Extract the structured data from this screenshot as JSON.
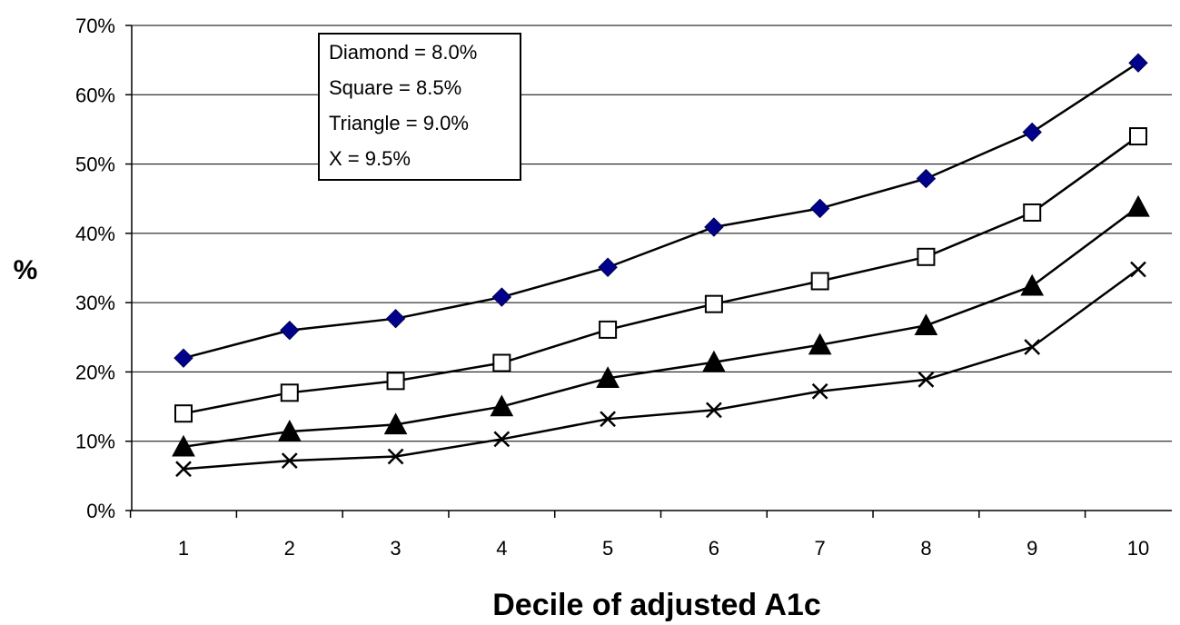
{
  "chart_data": {
    "type": "line",
    "xlabel": "Decile of adjusted A1c",
    "ylabel": "%",
    "categories": [
      "1",
      "2",
      "3",
      "4",
      "5",
      "6",
      "7",
      "8",
      "9",
      "10"
    ],
    "ylim": [
      0,
      70
    ],
    "yticks": [
      "0%",
      "10%",
      "20%",
      "30%",
      "40%",
      "50%",
      "60%",
      "70%"
    ],
    "ytick_values": [
      0,
      10,
      20,
      30,
      40,
      50,
      60,
      70
    ],
    "grid": "horizontal",
    "legend_placement": "top-left",
    "legend": [
      "Diamond = 8.0%",
      "Square = 8.5%",
      "Triangle = 9.0%",
      "X = 9.5%"
    ],
    "series": [
      {
        "marker": "diamond",
        "color": "#00008B",
        "values": [
          22,
          26,
          27.7,
          30.8,
          35.1,
          40.9,
          43.6,
          47.9,
          54.6,
          64.6
        ]
      },
      {
        "marker": "square",
        "color": "#000000",
        "values": [
          14,
          17,
          18.7,
          21.3,
          26.1,
          29.8,
          33.1,
          36.6,
          43,
          54
        ]
      },
      {
        "marker": "triangle",
        "color": "#000000",
        "values": [
          9.2,
          11.4,
          12.4,
          15,
          19.1,
          21.4,
          23.9,
          26.7,
          32.4,
          43.8
        ]
      },
      {
        "marker": "x",
        "color": "#000000",
        "values": [
          6,
          7.2,
          7.8,
          10.3,
          13.2,
          14.5,
          17.2,
          18.9,
          23.6,
          34.8
        ]
      }
    ]
  }
}
